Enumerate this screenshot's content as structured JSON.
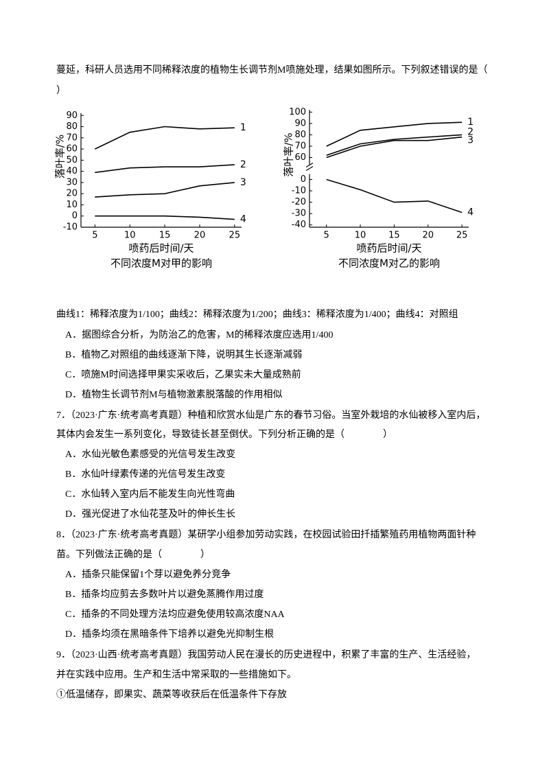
{
  "questions": [
    {
      "stem": [
        "蔓延，科研人员选用不同稀释浓度的植物生长调节剂M喷施处理，结果如图所示。下列叙述错误的是（",
        "）"
      ],
      "note": "曲线1：稀释浓度为1/100；曲线2：稀释浓度为1/200；曲线3：稀释浓度为1/400；曲线4：对照组",
      "options": [
        "A．据图综合分析，为防治乙的危害，M的稀释浓度应选用1/400",
        "B．植物乙对照组的曲线逐渐下降，说明其生长逐渐减弱",
        "C．喷施M时间选择甲果实采收后，乙果实未大量成熟前",
        "D．植物生长调节剂M与植物激素脱落酸的作用相似"
      ]
    },
    {
      "stem": [
        "7．（2023·广东·统考高考真题）种植和欣赏水仙是广东的春节习俗。当室外栽培的水仙被移入室内后，",
        "其体内会发生一系列变化，导致徒长甚至倒伏。下列分析正确的是（　　　　）"
      ],
      "options": [
        "A．水仙光敏色素感受的光信号发生改变",
        "B．水仙叶绿素传递的光信号发生改变",
        "C．水仙转入室内后不能发生向光性弯曲",
        "D．强光促进了水仙花茎及叶的伸长生长"
      ]
    },
    {
      "stem": [
        "8．（2023·广东·统考高考真题）某研学小组参加劳动实践，在校园试验田扦插繁殖药用植物两面针种",
        "苗。下列做法正确的是（　　　　）"
      ],
      "options": [
        "A．插条只能保留1个芽以避免养分竞争",
        "B．插条均应剪去多数叶片以避免蒸腾作用过度",
        "C．插条的不同处理方法均应避免使用较高浓度NAA",
        "D．插条均须在黑暗条件下培养以避免光抑制生根"
      ]
    },
    {
      "stem": [
        "9．（2023·山西·统考高考真题）我国劳动人民在漫长的历史进程中，积累了丰富的生产、生活经验，",
        "并在实践中应用。生产和生活中常采取的一些措施如下。"
      ],
      "options": [
        "①低温储存，即果实、蔬菜等收获后在低温条件下存放"
      ]
    }
  ],
  "chart_data": [
    {
      "type": "line",
      "title": "不同浓度M对甲的影响",
      "xlabel": "喷药后时间/天",
      "ylabel": "落叶率/%",
      "x": [
        5,
        10,
        15,
        20,
        25
      ],
      "xlim": [
        3,
        26
      ],
      "xticks": [
        5,
        10,
        15,
        20,
        25
      ],
      "ylim": [
        -10,
        92
      ],
      "yticks": [
        90,
        80,
        70,
        60,
        50,
        40,
        30,
        20,
        10,
        0,
        -10
      ],
      "series": [
        {
          "name": "1",
          "color": "#000000",
          "values": [
            60,
            75,
            80,
            78,
            79
          ]
        },
        {
          "name": "2",
          "color": "#000000",
          "values": [
            39,
            43,
            44,
            44,
            46
          ]
        },
        {
          "name": "3",
          "color": "#000000",
          "values": [
            17,
            19,
            20,
            27,
            30
          ]
        },
        {
          "name": "4",
          "color": "#000000",
          "values": [
            0,
            0,
            0,
            -1,
            -3
          ]
        }
      ]
    },
    {
      "type": "line",
      "title": "不同浓度M对乙的影响",
      "xlabel": "喷药后时间/天",
      "ylabel": "落叶率/%",
      "x": [
        5,
        10,
        15,
        20,
        25
      ],
      "xlim": [
        2.5,
        26
      ],
      "xticks": [
        5,
        10,
        15,
        20,
        25
      ],
      "ylim": [
        -42,
        102
      ],
      "yticks": [
        100,
        90,
        80,
        70,
        60,
        0,
        -10,
        -20,
        -30,
        -40
      ],
      "axis_break": true,
      "series": [
        {
          "name": "1",
          "color": "#000000",
          "values": [
            70,
            84,
            87,
            90,
            91
          ]
        },
        {
          "name": "2",
          "color": "#000000",
          "values": [
            62,
            72,
            76,
            78,
            80
          ]
        },
        {
          "name": "3",
          "color": "#000000",
          "values": [
            60,
            70,
            75,
            75,
            78
          ]
        },
        {
          "name": "4",
          "color": "#000000",
          "values": [
            0,
            -9,
            -20,
            -19,
            -29
          ]
        }
      ]
    }
  ]
}
